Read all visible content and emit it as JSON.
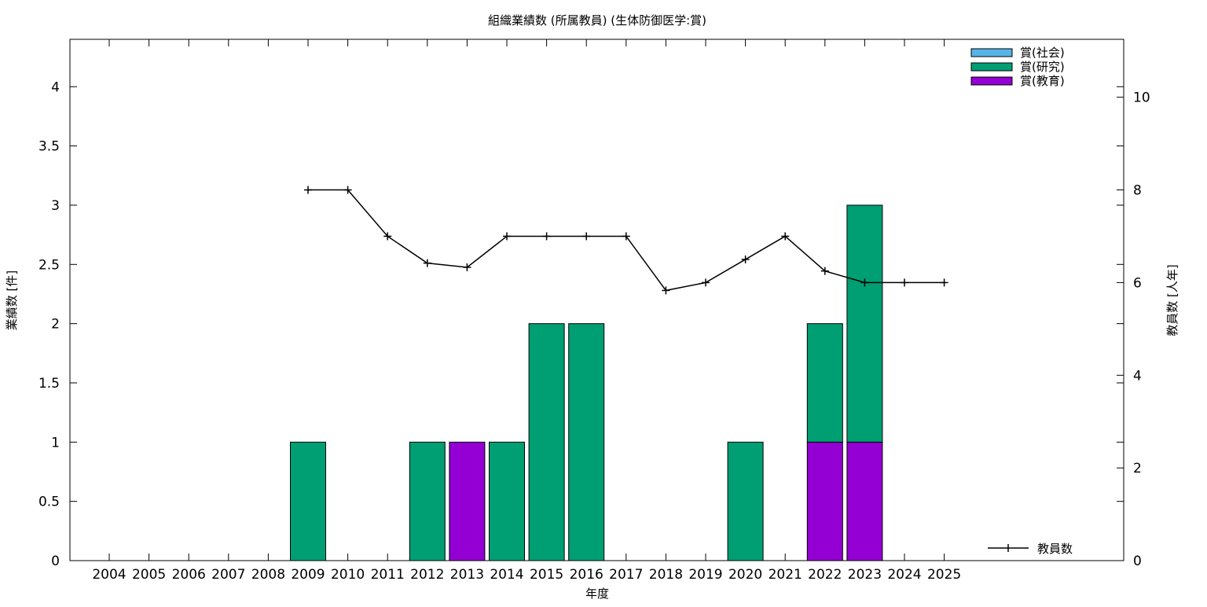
{
  "chart_data": {
    "type": "bar",
    "title": "組織業績数 (所属教員) (生体防御医学:賞)",
    "xlabel": "年度",
    "ylabel": "業績数 [件]",
    "y2label": "教員数 [人年]",
    "ylim": [
      0,
      4.4
    ],
    "y2lim": [
      0,
      11.25
    ],
    "yticks": [
      "0",
      "0.5",
      "1",
      "1.5",
      "2",
      "2.5",
      "3",
      "3.5",
      "4"
    ],
    "y2ticks": [
      "0",
      "2",
      "4",
      "6",
      "8",
      "10"
    ],
    "categories": [
      "2004",
      "2005",
      "2006",
      "2007",
      "2008",
      "2009",
      "2010",
      "2011",
      "2012",
      "2013",
      "2014",
      "2015",
      "2016",
      "2017",
      "2018",
      "2019",
      "2020",
      "2021",
      "2022",
      "2023",
      "2024",
      "2025"
    ],
    "series": [
      {
        "name": "賞(社会)",
        "color": "#56b4e9",
        "values": [
          0,
          0,
          0,
          0,
          0,
          0,
          0,
          0,
          0,
          0,
          0,
          0,
          0,
          0,
          0,
          0,
          0,
          0,
          0,
          0,
          0,
          0
        ]
      },
      {
        "name": "賞(研究)",
        "color": "#009e73",
        "values": [
          0,
          0,
          0,
          0,
          0,
          1,
          0,
          0,
          1,
          0,
          1,
          2,
          2,
          0,
          0,
          0,
          1,
          0,
          1,
          2,
          0,
          0
        ]
      },
      {
        "name": "賞(教育)",
        "color": "#9400d3",
        "values": [
          0,
          0,
          0,
          0,
          0,
          0,
          0,
          0,
          0,
          1,
          0,
          0,
          0,
          0,
          0,
          0,
          0,
          0,
          1,
          1,
          0,
          0
        ]
      }
    ],
    "line_series": {
      "name": "教員数",
      "color": "#000000",
      "axis": "right",
      "x": [
        "2009",
        "2010",
        "2011",
        "2012",
        "2013",
        "2014",
        "2015",
        "2016",
        "2017",
        "2018",
        "2019",
        "2020",
        "2021",
        "2022",
        "2023",
        "2024",
        "2025"
      ],
      "values": [
        8,
        8,
        7,
        6.42,
        6.33,
        7,
        7,
        7,
        7,
        5.83,
        6,
        6.5,
        7,
        6.25,
        6,
        6,
        6
      ]
    },
    "legend": [
      "top-right",
      "bottom-right"
    ],
    "grid": false,
    "stacked": true
  }
}
